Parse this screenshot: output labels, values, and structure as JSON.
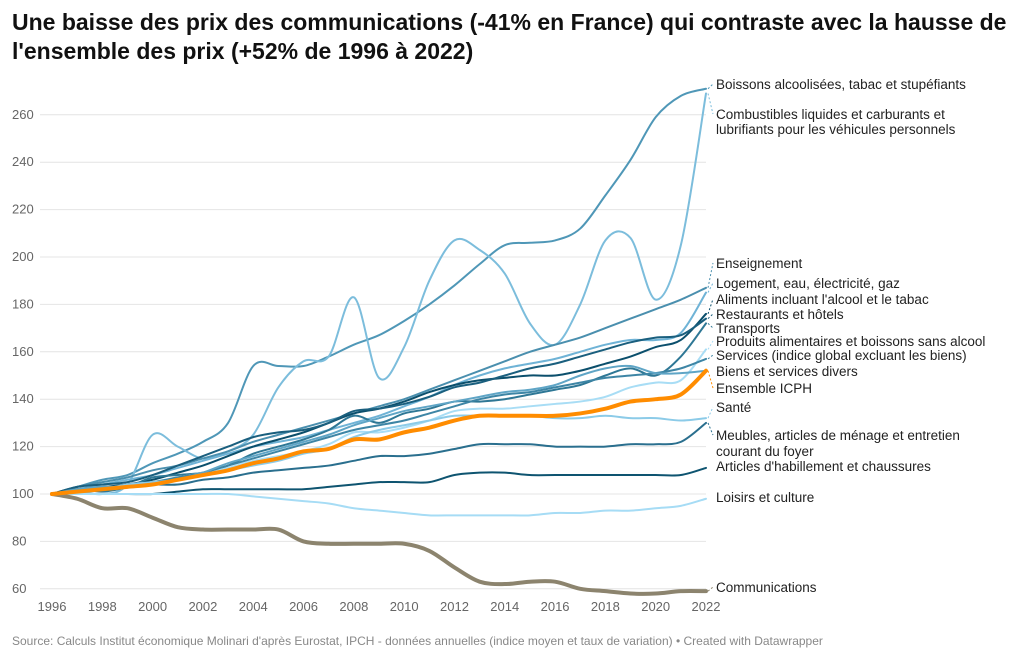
{
  "title": "Une baisse des prix des communications (-41% en France) qui contraste avec la hausse de l'ensemble des prix (+52% de 1996 à 2022)",
  "footer": "Source: Calculs Institut économique Molinari d'après Eurostat, IPCH - données annuelles (indice moyen et taux de variation) • Created with Datawrapper",
  "chart_data": {
    "type": "line",
    "title": "Une baisse des prix des communications (-41% en France) qui contraste avec la hausse de l'ensemble des prix (+52% de 1996 à 2022)",
    "xlabel": "",
    "ylabel": "",
    "x": [
      1996,
      1997,
      1998,
      1999,
      2000,
      2001,
      2002,
      2003,
      2004,
      2005,
      2006,
      2007,
      2008,
      2009,
      2010,
      2011,
      2012,
      2013,
      2014,
      2015,
      2016,
      2017,
      2018,
      2019,
      2020,
      2021,
      2022
    ],
    "x_ticks": [
      "1996",
      "1998",
      "2000",
      "2002",
      "2004",
      "2006",
      "2008",
      "2010",
      "2012",
      "2014",
      "2016",
      "2018",
      "2020",
      "2022"
    ],
    "y_ticks": [
      "60",
      "80",
      "100",
      "120",
      "140",
      "160",
      "180",
      "200",
      "220",
      "240",
      "260"
    ],
    "ylim": [
      60,
      275
    ],
    "grid": "horizontal",
    "legend": "direct labels right",
    "series": [
      {
        "name": "Boissons alcoolisées, tabac et stupéfiants",
        "color": "#4f97b7",
        "values": [
          100,
          103,
          106,
          108,
          113,
          117,
          122,
          130,
          154,
          154,
          154,
          158,
          163,
          167,
          173,
          180,
          188,
          197,
          205,
          206,
          207,
          212,
          226,
          241,
          259,
          268,
          271
        ]
      },
      {
        "name": "Combustibles liquides et carburants et lubrifiants pour les véhicules personnels",
        "color": "#7cbddc",
        "values": [
          100,
          101,
          100,
          104,
          125,
          120,
          115,
          118,
          125,
          145,
          156,
          158,
          183,
          149,
          162,
          190,
          207,
          203,
          193,
          172,
          163,
          180,
          207,
          208,
          182,
          205,
          269
        ]
      },
      {
        "name": "Enseignement",
        "color": "#4a8fae",
        "values": [
          100,
          103,
          105,
          107,
          110,
          112,
          115,
          118,
          122,
          125,
          128,
          131,
          134,
          137,
          140,
          144,
          148,
          152,
          156,
          160,
          163,
          166,
          170,
          174,
          178,
          182,
          187
        ]
      },
      {
        "name": "Logement, eau, électricité, gaz",
        "color": "#6fb3d6",
        "values": [
          100,
          102,
          104,
          106,
          108,
          111,
          114,
          117,
          120,
          122,
          124,
          127,
          130,
          133,
          137,
          141,
          146,
          150,
          153,
          155,
          157,
          160,
          163,
          165,
          165,
          168,
          185
        ]
      },
      {
        "name": "Aliments incluant l'alcool et le tabac",
        "color": "#0b4f6c",
        "values": [
          100,
          102,
          103,
          104,
          106,
          109,
          112,
          116,
          120,
          123,
          126,
          130,
          134,
          136,
          139,
          143,
          146,
          148,
          149,
          150,
          150,
          152,
          155,
          158,
          162,
          165,
          176
        ]
      },
      {
        "name": "Restaurants et hôtels",
        "color": "#1a5f7e",
        "values": [
          100,
          103,
          104,
          105,
          108,
          112,
          116,
          120,
          124,
          126,
          127,
          130,
          135,
          136,
          138,
          141,
          145,
          147,
          150,
          153,
          155,
          158,
          161,
          164,
          166,
          167,
          174
        ]
      },
      {
        "name": "Transports",
        "color": "#2e7795",
        "values": [
          100,
          102,
          101,
          103,
          107,
          108,
          109,
          112,
          117,
          120,
          123,
          127,
          133,
          130,
          134,
          136,
          139,
          139,
          140,
          142,
          144,
          146,
          150,
          153,
          150,
          158,
          172
        ]
      },
      {
        "name": "Produits alimentaires et boissons sans alcool",
        "color": "#a8ddf5",
        "values": [
          100,
          101,
          102,
          103,
          105,
          107,
          109,
          111,
          114,
          116,
          118,
          121,
          126,
          126,
          128,
          131,
          135,
          136,
          136,
          137,
          138,
          139,
          141,
          145,
          147,
          148,
          161
        ]
      },
      {
        "name": "Services (indice global excluant les biens)",
        "color": "#3d85a5",
        "values": [
          100,
          101,
          102,
          104,
          105,
          107,
          109,
          112,
          115,
          118,
          121,
          124,
          127,
          129,
          131,
          134,
          137,
          140,
          142,
          143,
          145,
          147,
          149,
          150,
          151,
          153,
          157
        ]
      },
      {
        "name": "Biens et services divers",
        "color": "#5fa5c6",
        "values": [
          100,
          102,
          103,
          103,
          104,
          106,
          109,
          113,
          116,
          119,
          122,
          125,
          129,
          132,
          135,
          137,
          139,
          141,
          143,
          144,
          146,
          150,
          153,
          154,
          151,
          151,
          152
        ]
      },
      {
        "name": "Ensemble ICPH",
        "color": "#ff8c00",
        "values": [
          100,
          101,
          102,
          103,
          104,
          106,
          108,
          110,
          113,
          115,
          118,
          119,
          123,
          123,
          126,
          128,
          131,
          133,
          133,
          133,
          133,
          134,
          136,
          139,
          140,
          142,
          152
        ]
      },
      {
        "name": "Santé",
        "color": "#8ccbe8",
        "values": [
          100,
          101,
          102,
          104,
          105,
          106,
          108,
          110,
          112,
          114,
          117,
          119,
          124,
          127,
          129,
          131,
          133,
          133,
          133,
          133,
          132,
          132,
          133,
          132,
          132,
          131,
          132
        ]
      },
      {
        "name": "Meubles, articles de ménage et entretien courant du foyer",
        "color": "#2a6f8e",
        "values": [
          100,
          101,
          102,
          103,
          104,
          104,
          106,
          107,
          109,
          110,
          111,
          112,
          114,
          116,
          116,
          117,
          119,
          121,
          121,
          121,
          120,
          120,
          120,
          121,
          121,
          122,
          130
        ]
      },
      {
        "name": "Articles d'habillement et chaussures",
        "color": "#0e5470",
        "values": [
          100,
          100,
          100,
          100,
          100,
          101,
          102,
          102,
          102,
          102,
          102,
          103,
          104,
          105,
          105,
          105,
          108,
          109,
          109,
          108,
          108,
          108,
          108,
          108,
          108,
          108,
          111
        ]
      },
      {
        "name": "Loisirs et culture",
        "color": "#a6dcf5",
        "values": [
          100,
          100,
          100,
          100,
          100,
          100,
          100,
          100,
          99,
          98,
          97,
          96,
          94,
          93,
          92,
          91,
          91,
          91,
          91,
          91,
          92,
          92,
          93,
          93,
          94,
          95,
          98
        ]
      },
      {
        "name": "Communications",
        "color": "#8c846e",
        "values": [
          100,
          98,
          94,
          94,
          90,
          86,
          85,
          85,
          85,
          85,
          80,
          79,
          79,
          79,
          79,
          76,
          69,
          63,
          62,
          63,
          63,
          60,
          59,
          58,
          58,
          59,
          59
        ]
      }
    ]
  }
}
